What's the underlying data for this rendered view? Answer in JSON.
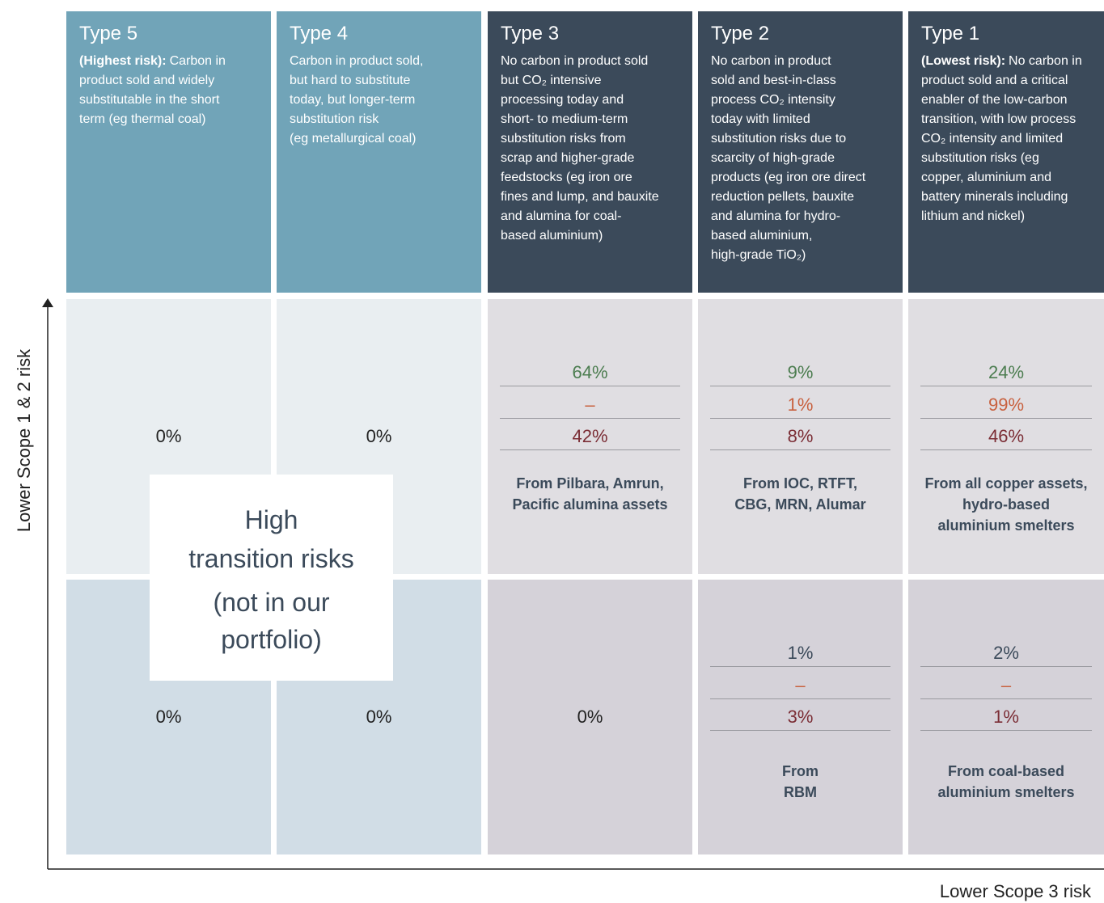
{
  "header": [
    {
      "title": "Type 5",
      "lead": "(Highest risk):",
      "lines": [
        "Carbon in",
        "product sold and widely",
        "substitutable in the short",
        "term (eg thermal coal)"
      ]
    },
    {
      "title": "Type 4",
      "lines": [
        "Carbon in product sold,",
        "but hard to substitute",
        "today, but longer-term",
        "substitution risk",
        "(eg metallurgical coal)"
      ]
    },
    {
      "title": "Type 3",
      "lines": [
        "No carbon in product sold",
        "but CO₂ intensive",
        "processing today and",
        "short- to medium-term",
        "substitution risks from",
        "scrap and higher-grade",
        "feedstocks (eg iron ore",
        "fines and lump, and bauxite",
        "and alumina for coal-",
        "based aluminium)"
      ]
    },
    {
      "title": "Type 2",
      "lines": [
        "No carbon in product",
        "sold and best-in-class",
        "process CO₂ intensity",
        "today with limited",
        "substitution risks due to",
        "scarcity of high-grade",
        "products (eg iron ore direct",
        "reduction pellets, bauxite",
        "and alumina for hydro-",
        "based aluminium,",
        "high-grade TiO₂)"
      ]
    },
    {
      "title": "Type 1",
      "lead": "(Lowest risk):",
      "lines": [
        "No carbon in",
        "product sold and a critical",
        "enabler of the low-carbon",
        "transition, with low process",
        "CO₂ intensity and limited",
        "substitution risks (eg",
        "copper, aluminium and",
        "battery minerals including",
        "lithium and nickel)"
      ]
    }
  ],
  "rows": [
    {
      "value_colors": [
        "#4c7d50",
        "#c8613f",
        "#7b2d35"
      ],
      "cells": [
        {
          "values": [
            "0%"
          ]
        },
        {
          "values": [
            "0%"
          ]
        },
        {
          "values": [
            "64%",
            "–",
            "42%"
          ],
          "note": [
            "From Pilbara, Amrun,",
            "Pacific alumina assets"
          ]
        },
        {
          "values": [
            "9%",
            "1%",
            "8%"
          ],
          "note": [
            "From IOC, RTFT,",
            "CBG, MRN, Alumar"
          ]
        },
        {
          "values": [
            "24%",
            "99%",
            "46%"
          ],
          "note": [
            "From all copper assets,",
            "hydro-based",
            "aluminium smelters"
          ]
        }
      ]
    },
    {
      "value_colors": [
        "#3b4a5a",
        "#c8613f",
        "#7b2d35"
      ],
      "cells": [
        {
          "values": [
            "0%"
          ]
        },
        {
          "values": [
            "0%"
          ]
        },
        {
          "values": [
            "0%"
          ]
        },
        {
          "values": [
            "1%",
            "–",
            "3%"
          ],
          "note": [
            "From",
            "RBM"
          ]
        },
        {
          "values": [
            "2%",
            "–",
            "1%"
          ],
          "note": [
            "From coal-based",
            "aluminium smelters"
          ]
        }
      ]
    }
  ],
  "overlay": [
    "High",
    "transition risks",
    "(not in our",
    "portfolio)"
  ],
  "y_axis_label": "Lower Scope 1 & 2 risk",
  "x_axis_label": "Lower Scope 3 risk"
}
